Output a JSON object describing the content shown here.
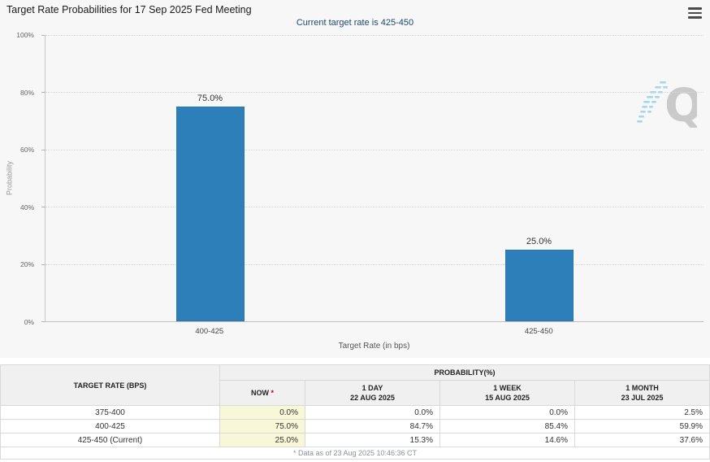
{
  "header": {
    "title": "Target Rate Probabilities for 17 Sep 2025 Fed Meeting",
    "subtitle": "Current target rate is 425-450"
  },
  "chart_data": {
    "type": "bar",
    "title": "Target Rate Probabilities for 17 Sep 2025 Fed Meeting",
    "categories": [
      "400-425",
      "425-450"
    ],
    "values": [
      75.0,
      25.0
    ],
    "bar_labels": [
      "75.0%",
      "25.0%"
    ],
    "xlabel": "Target Rate (in bps)",
    "ylabel": "Probability",
    "ylim": [
      0,
      100
    ],
    "yticks": [
      "100%",
      "80%",
      "60%",
      "40%",
      "20%",
      "0%"
    ],
    "grid": "horizontal-dotted",
    "legend": "none",
    "bar_color": "#2c7fb8"
  },
  "watermark": {
    "letter": "Q"
  },
  "table": {
    "corner_header": "TARGET RATE (BPS)",
    "group_header": "PROBABILITY(%)",
    "columns": [
      {
        "label": "NOW",
        "asterisk": "*",
        "sublabel": ""
      },
      {
        "label": "1 DAY",
        "sublabel": "22 AUG 2025"
      },
      {
        "label": "1 WEEK",
        "sublabel": "15 AUG 2025"
      },
      {
        "label": "1 MONTH",
        "sublabel": "23 JUL 2025"
      }
    ],
    "rows": [
      {
        "rate": "375-400",
        "values": [
          "0.0%",
          "0.0%",
          "0.0%",
          "2.5%"
        ]
      },
      {
        "rate": "400-425",
        "values": [
          "75.0%",
          "84.7%",
          "85.4%",
          "59.9%"
        ]
      },
      {
        "rate": "425-450 (Current)",
        "values": [
          "25.0%",
          "15.3%",
          "14.6%",
          "37.6%"
        ]
      }
    ],
    "footnote": "* Data as of 23 Aug 2025 10:46:36 CT"
  },
  "colors": {
    "bar": "#2c7fb8",
    "subtitle_navy": "#1d4671",
    "now_column_bg": "#f8f8d8",
    "asterisk_red": "#cc0000",
    "chart_bg": "#f7f7f7"
  }
}
